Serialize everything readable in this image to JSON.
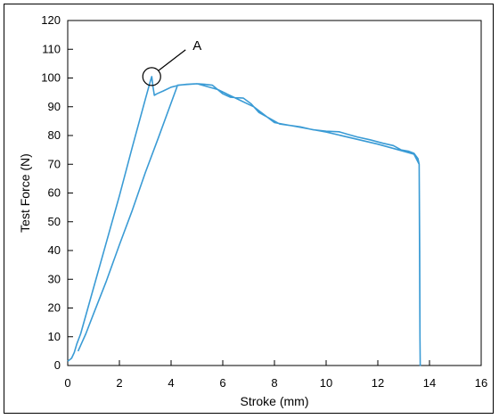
{
  "chart_data": {
    "type": "line",
    "xlabel": "Stroke (mm)",
    "ylabel": "Test Force (N)",
    "xlim": [
      0,
      16
    ],
    "ylim": [
      0,
      120
    ],
    "x_ticks": [
      "0",
      "2",
      "4",
      "6",
      "8",
      "10",
      "12",
      "14",
      "16"
    ],
    "y_ticks": [
      "0",
      "10",
      "20",
      "30",
      "40",
      "50",
      "60",
      "70",
      "80",
      "90",
      "100",
      "110",
      "120"
    ],
    "grid": false,
    "legend": "none",
    "line_color": "#3a9bd5",
    "annotations": [
      {
        "text": "A",
        "target_x": 3.25,
        "target_y": 100.5
      }
    ],
    "series": [
      {
        "points": [
          [
            0.0,
            1.5
          ],
          [
            0.15,
            2.5
          ],
          [
            0.25,
            4.5
          ],
          [
            0.35,
            7.5
          ],
          [
            0.5,
            11
          ],
          [
            1.0,
            27
          ],
          [
            1.5,
            43
          ],
          [
            2.0,
            59
          ],
          [
            2.5,
            76
          ],
          [
            3.0,
            92.5
          ],
          [
            3.2,
            99
          ],
          [
            3.25,
            100.5
          ],
          [
            3.3,
            97
          ],
          [
            3.35,
            94
          ],
          [
            3.45,
            94.5
          ],
          [
            3.7,
            95.5
          ],
          [
            4.0,
            96.8
          ],
          [
            4.3,
            97.5
          ],
          [
            4.6,
            97.8
          ],
          [
            5.0,
            98
          ],
          [
            5.3,
            97.8
          ],
          [
            5.6,
            97.5
          ],
          [
            5.8,
            96
          ],
          [
            6.0,
            94.5
          ],
          [
            6.3,
            93.3
          ],
          [
            6.8,
            93
          ],
          [
            7.1,
            91
          ],
          [
            7.4,
            88
          ],
          [
            7.8,
            86
          ],
          [
            8.2,
            84
          ],
          [
            8.6,
            83.5
          ],
          [
            9.0,
            83
          ],
          [
            9.5,
            82
          ],
          [
            10.0,
            81.5
          ],
          [
            10.5,
            81.3
          ],
          [
            10.8,
            80.5
          ],
          [
            11.2,
            79.5
          ],
          [
            11.7,
            78.5
          ],
          [
            12.2,
            77.3
          ],
          [
            12.6,
            76.5
          ],
          [
            12.9,
            75
          ],
          [
            13.2,
            74.5
          ],
          [
            13.4,
            73.8
          ],
          [
            13.55,
            72
          ],
          [
            13.6,
            70
          ],
          [
            13.62,
            40
          ],
          [
            13.63,
            10
          ],
          [
            13.64,
            0
          ],
          [
            13.63,
            10
          ],
          [
            13.6,
            70
          ],
          [
            13.4,
            73.5
          ],
          [
            13.0,
            74.5
          ],
          [
            12.0,
            77
          ],
          [
            10.0,
            81.2
          ],
          [
            8.0,
            84.5
          ],
          [
            7.2,
            90
          ],
          [
            6.5,
            93
          ],
          [
            5.8,
            96
          ],
          [
            5.0,
            98
          ],
          [
            4.4,
            97.6
          ],
          [
            4.25,
            97.5
          ],
          [
            3.5,
            79
          ],
          [
            3.0,
            67
          ],
          [
            2.5,
            54
          ],
          [
            2.0,
            42
          ],
          [
            1.5,
            29.5
          ],
          [
            1.0,
            18
          ],
          [
            0.7,
            11
          ],
          [
            0.5,
            7
          ],
          [
            0.4,
            5
          ]
        ]
      }
    ]
  }
}
